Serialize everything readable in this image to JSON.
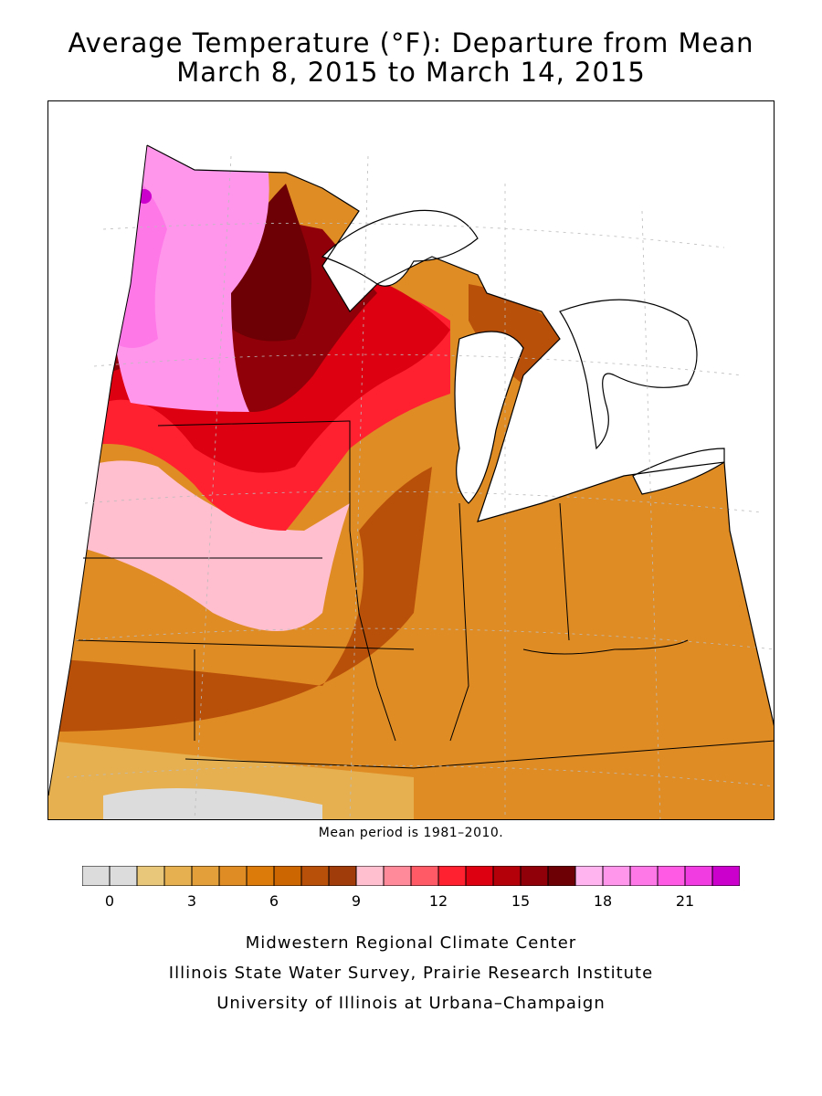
{
  "title_line1": "Average Temperature (°F): Departure from Mean",
  "title_line2": "March 8, 2015 to March 14, 2015",
  "mean_note": "Mean period is 1981–2010.",
  "legend": {
    "colors": [
      "#dcdcdc",
      "#dcdcdc",
      "#e8c67a",
      "#e6b050",
      "#e3a03a",
      "#e08c24",
      "#dc7a0a",
      "#cc6600",
      "#b8500a",
      "#a03c0a",
      "#ffbfcf",
      "#ff8a9a",
      "#ff5a66",
      "#ff2030",
      "#dc0010",
      "#b40008",
      "#900008",
      "#6c0004",
      "#ffb4f0",
      "#ff96ec",
      "#ff78e8",
      "#ff5ae4",
      "#f03ce0",
      "#cc00cc"
    ],
    "tick_labels": [
      {
        "index": 1,
        "label": "0"
      },
      {
        "index": 4,
        "label": "3"
      },
      {
        "index": 7,
        "label": "6"
      },
      {
        "index": 10,
        "label": "9"
      },
      {
        "index": 13,
        "label": "12"
      },
      {
        "index": 16,
        "label": "15"
      },
      {
        "index": 19,
        "label": "18"
      },
      {
        "index": 22,
        "label": "21"
      }
    ]
  },
  "credits": {
    "line1": "Midwestern Regional Climate Center",
    "line2": "Illinois State Water Survey, Prairie Research Institute",
    "line3": "University of Illinois at Urbana–Champaign"
  }
}
